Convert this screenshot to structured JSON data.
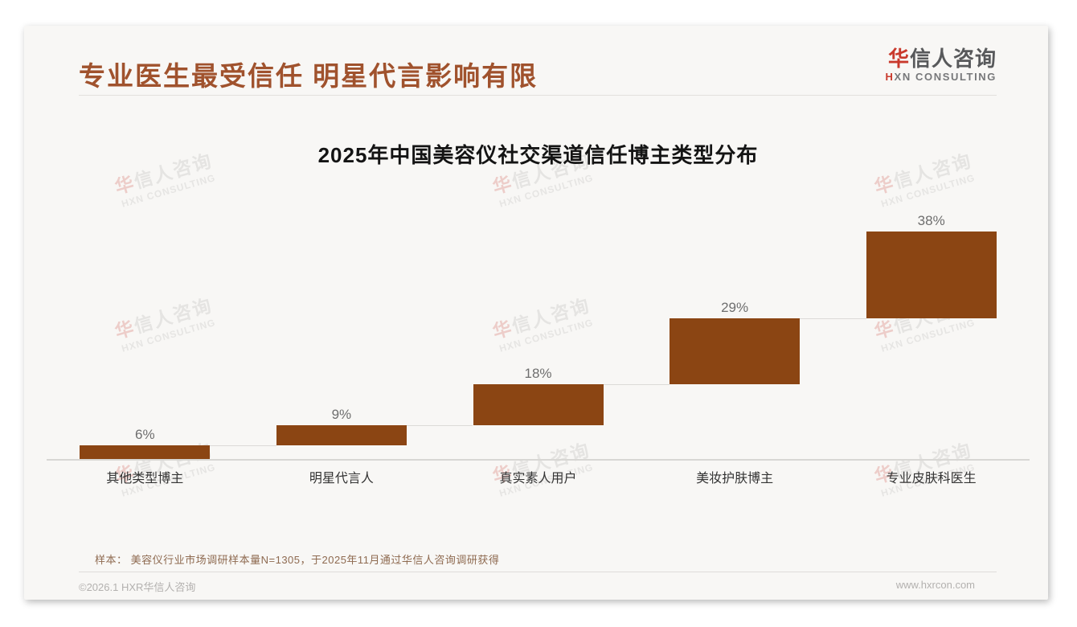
{
  "page": {
    "header": {
      "title": "专业医生最受信任 明星代言影响有限"
    },
    "logo": {
      "cn_first": "华",
      "cn_rest": "信人咨询",
      "en_first": "H",
      "en_rest": "XN CONSULTING"
    },
    "footnote": "样本： 美容仪行业市场调研样本量N=1305，于2025年11月通过华信人咨询调研获得",
    "footer": {
      "left": "©2026.1 HXR华信人咨询",
      "right": "www.hxrcon.com"
    },
    "watermark": {
      "line1_first": "华",
      "line1_rest": "信人咨询",
      "line2": "HXN CONSULTING"
    }
  },
  "colors": {
    "accent_brown": "#A0522D",
    "bar": "#8B4513",
    "logo_red": "#C9392C",
    "value_label": "#6E6E6E",
    "category_label": "#333333",
    "footnote": "#8E6A50",
    "footer_text": "#B3B1AF"
  },
  "chart_data": {
    "type": "bar",
    "variant": "waterfall",
    "title": "2025年中国美容仪社交渠道信任博主类型分布",
    "categories": [
      "其他类型博主",
      "明星代言人",
      "真实素人用户",
      "美妆护肤博主",
      "专业皮肤科医生"
    ],
    "values": [
      6,
      9,
      18,
      29,
      38
    ],
    "value_labels": [
      "6%",
      "9%",
      "18%",
      "29%",
      "38%"
    ],
    "cumulative": [
      6,
      15,
      33,
      62,
      100
    ],
    "unit": "%",
    "ylim": [
      0,
      100
    ],
    "grid": false,
    "legend": false,
    "orientation": "vertical",
    "bar_color": "#8B4513"
  }
}
